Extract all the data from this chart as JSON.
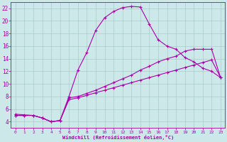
{
  "bg_color": "#cce8e8",
  "grid_color": "#aacaca",
  "line_color": "#aa00aa",
  "xlim": [
    -0.5,
    23.5
  ],
  "ylim": [
    3.0,
    23.0
  ],
  "yticks": [
    4,
    6,
    8,
    10,
    12,
    14,
    16,
    18,
    20,
    22
  ],
  "xticks": [
    0,
    1,
    2,
    3,
    4,
    5,
    6,
    7,
    8,
    9,
    10,
    11,
    12,
    13,
    14,
    15,
    16,
    17,
    18,
    19,
    20,
    21,
    22,
    23
  ],
  "xlabel": "Windchill (Refroidissement éolien,°C)",
  "line1_x": [
    0,
    1,
    2,
    3,
    4,
    5,
    6,
    7,
    8,
    9,
    10,
    11,
    12,
    13,
    14,
    15,
    16,
    17,
    18,
    19,
    20,
    21,
    22,
    23
  ],
  "line1_y": [
    5.0,
    5.0,
    5.0,
    4.6,
    4.0,
    4.2,
    7.5,
    7.8,
    8.2,
    8.6,
    9.0,
    9.4,
    9.8,
    10.2,
    10.6,
    11.0,
    11.4,
    11.8,
    12.2,
    12.6,
    13.0,
    13.4,
    13.8,
    11.0
  ],
  "line2_x": [
    0,
    1,
    2,
    3,
    4,
    5,
    6,
    7,
    8,
    9,
    10,
    11,
    12,
    13,
    14,
    15,
    16,
    17,
    18,
    19,
    20,
    21,
    22,
    23
  ],
  "line2_y": [
    5.0,
    5.0,
    5.0,
    4.6,
    4.0,
    4.2,
    7.8,
    8.0,
    8.5,
    9.0,
    9.6,
    10.2,
    10.8,
    11.4,
    12.2,
    12.8,
    13.5,
    14.0,
    14.4,
    15.2,
    15.5,
    15.5,
    15.5,
    11.0
  ],
  "line3_x": [
    0,
    1,
    2,
    3,
    4,
    5,
    6,
    7,
    8,
    9,
    10,
    11,
    12,
    13,
    14,
    15,
    16,
    17,
    18,
    19,
    20,
    21,
    22,
    23
  ],
  "line3_y": [
    5.2,
    5.1,
    5.0,
    4.6,
    4.0,
    4.2,
    8.0,
    12.2,
    15.0,
    18.5,
    20.5,
    21.5,
    22.1,
    22.3,
    22.2,
    19.5,
    17.0,
    16.0,
    15.5,
    14.2,
    13.5,
    12.5,
    12.0,
    11.0
  ]
}
